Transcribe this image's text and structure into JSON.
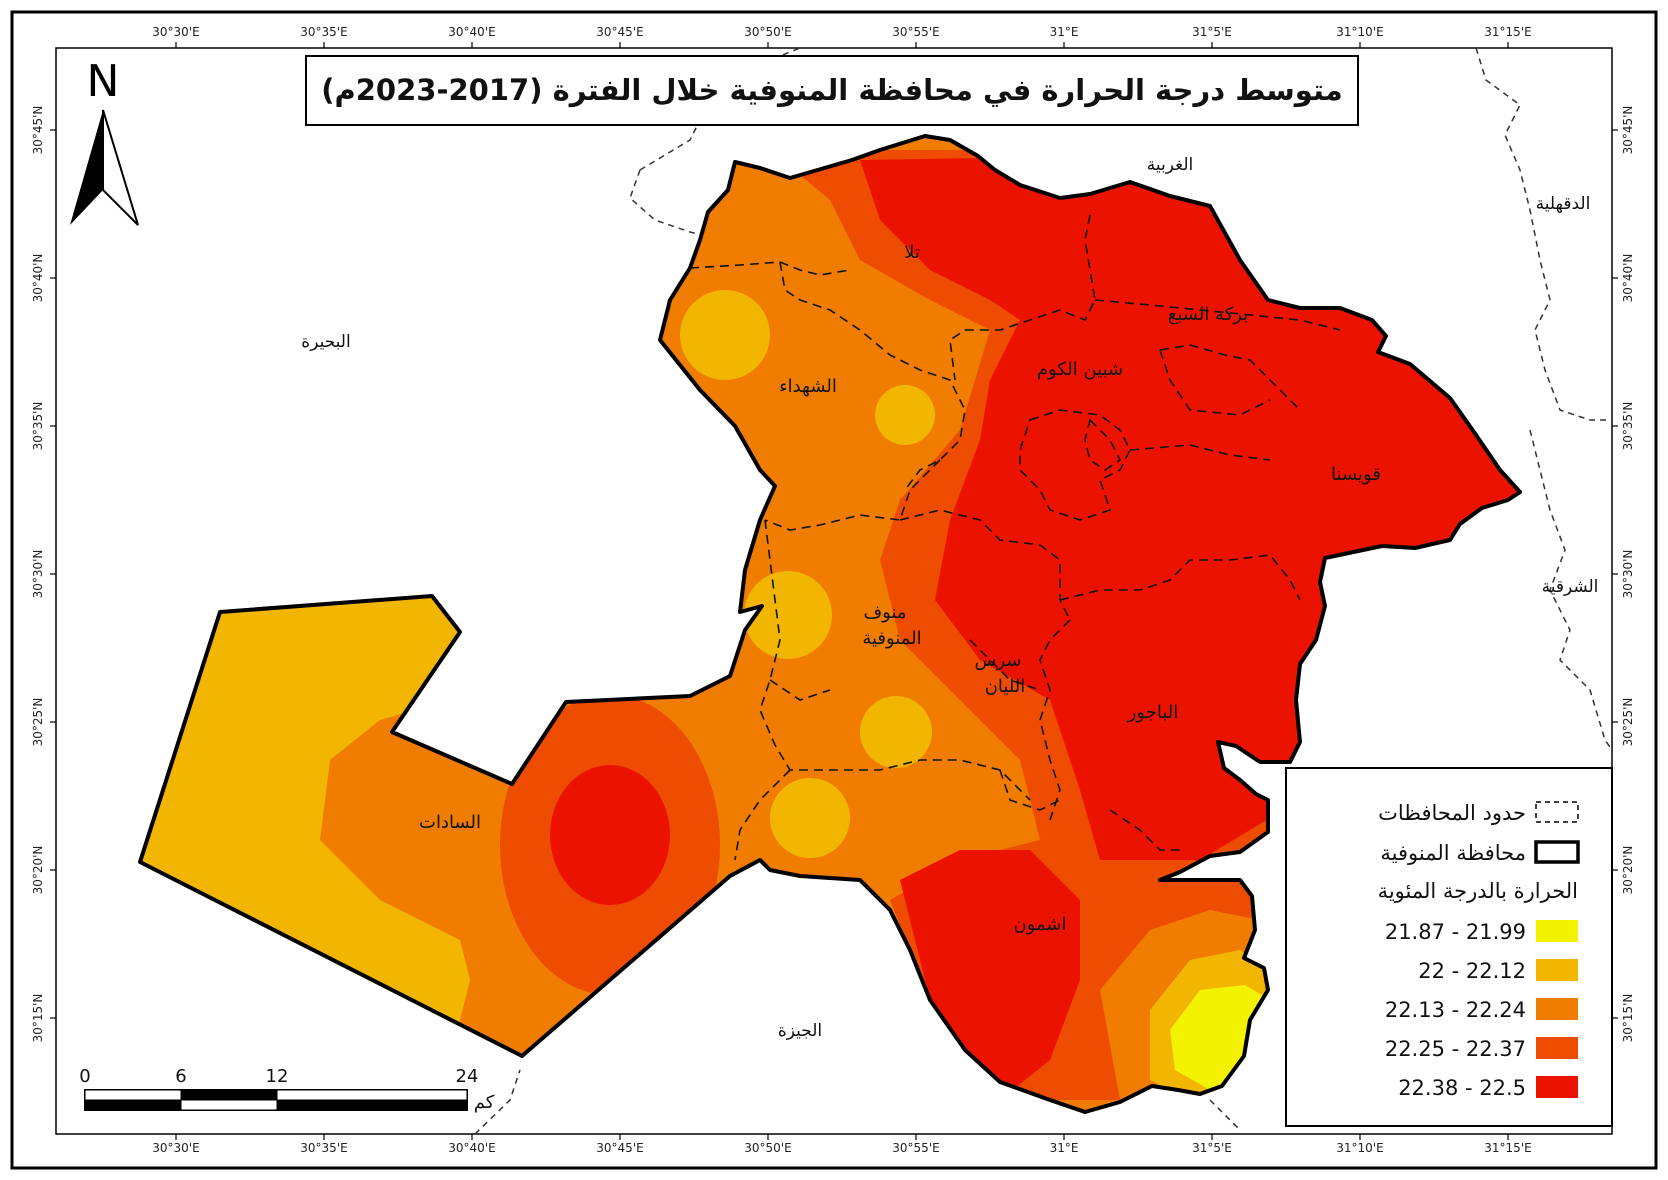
{
  "map": {
    "title": "متوسط درجة الحرارة في محافظة المنوفية خلال الفترة (2017-2023م)",
    "north_label": "N",
    "lon_ticks": [
      "30°30'E",
      "30°35'E",
      "30°40'E",
      "30°45'E",
      "30°50'E",
      "30°55'E",
      "31°E",
      "31°5'E",
      "31°10'E",
      "31°15'E"
    ],
    "lat_ticks": [
      "30°45'N",
      "30°40'N",
      "30°35'N",
      "30°30'N",
      "30°25'N",
      "30°20'N",
      "30°15'N"
    ],
    "districts": {
      "tala": "تلا",
      "berkat": "بركه السبع",
      "shebin": "شبين الكوم",
      "shohada": "الشهداء",
      "quesna": "قويسنا",
      "menouf": "منوف",
      "menoufia": "المنوفية",
      "sirs": "سرس",
      "layan": "الليان",
      "bagour": "الباجور",
      "sadat": "السادات",
      "ashmoun": "اشمون"
    },
    "governorates": {
      "gharbia": "الغربية",
      "dakahlia": "الدقهلية",
      "beheira": "البحيرة",
      "sharqia": "الشرقية",
      "giza": "الجيزة"
    },
    "scale_bar": {
      "labels": [
        "0",
        "6",
        "12",
        "24"
      ],
      "unit": "كم"
    },
    "legend": {
      "boundaries_label": "حدود المحافظات",
      "governorate_label": "محافظة المنوفية",
      "heading": "الحرارة بالدرجة المئوية",
      "classes": [
        {
          "range": "21.87 - 21.99",
          "color": "#f3f200"
        },
        {
          "range": "22 - 22.12",
          "color": "#f2b600"
        },
        {
          "range": "22.13 - 22.24",
          "color": "#f07c00"
        },
        {
          "range": "22.25 - 22.37",
          "color": "#ee4c00"
        },
        {
          "range": "22.38 - 22.5",
          "color": "#ec1200"
        }
      ]
    }
  }
}
